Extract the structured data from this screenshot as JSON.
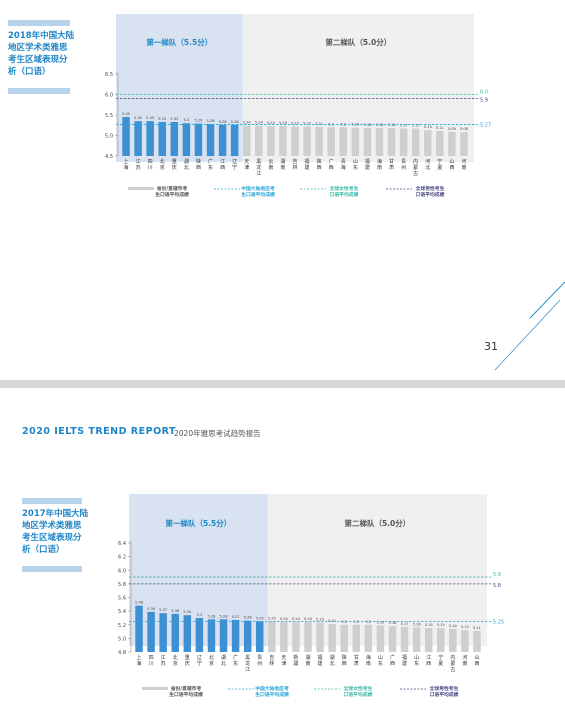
{
  "top": {
    "sidebar_title": "2018年中国大陆\n地区学术类雅思\n考生区域表现分\n析（口语）",
    "page_number": "31"
  },
  "bottom": {
    "report_title": "2020 IELTS TREND REPORT",
    "report_subtitle": "2020年雅思考试趋势报告",
    "sidebar_title": "2017年中国大陆\n地区学术类雅思\n考生区域表现分\n析（口语）"
  },
  "colors": {
    "blue_bar": "#3f90d3",
    "gray_bar": "#cfcfcf",
    "tier1_bg": "#d8e2f0",
    "tier2_bg": "#f0f0f0",
    "china_line": "#2aa7d9",
    "female_line": "#3bb9a6",
    "male_line": "#4a4a86",
    "accent": "#1e86c6"
  },
  "chart_data": [
    {
      "type": "bar",
      "year": "2018",
      "tiers": [
        {
          "label": "第一梯队（5.5分）"
        },
        {
          "label": "第二梯队（5.0分）"
        }
      ],
      "yticks": [
        "4.5",
        "5.0",
        "5.5",
        "6.0",
        "6.5"
      ],
      "ylim": [
        4.5,
        6.5
      ],
      "categories": [
        "上海",
        "江苏",
        "四川",
        "北京",
        "重庆",
        "湖北",
        "陕西",
        "广东",
        "江西",
        "辽宁",
        "天津",
        "黑龙江",
        "云南",
        "湖南",
        "吉林",
        "福建",
        "陕西",
        "广西",
        "青海",
        "山东",
        "福建",
        "海南",
        "甘肃",
        "贵州",
        "内蒙古",
        "河北",
        "宁夏",
        "山西",
        "河南"
      ],
      "tier1_count": 10,
      "values": [
        5.45,
        5.35,
        5.35,
        5.33,
        5.33,
        5.3,
        5.29,
        5.28,
        5.26,
        5.26,
        5.24,
        5.24,
        5.23,
        5.23,
        5.22,
        5.22,
        5.21,
        5.2,
        5.2,
        5.19,
        5.18,
        5.18,
        5.18,
        5.17,
        5.17,
        5.13,
        5.11,
        5.09,
        5.08
      ],
      "value_labels": [
        "5.45",
        "5.35",
        "5.35",
        "5.33",
        "5.33",
        "5.3",
        "5.29",
        "5.28",
        "5.26",
        "5.26",
        "5.24",
        "5.24",
        "5.23",
        "5.23",
        "5.22",
        "5.22",
        "5.21",
        "5.2",
        "5.2",
        "5.19",
        "5.18",
        "5.18",
        "5.18",
        "5.17",
        "5.17",
        "5.13",
        "5.11",
        "5.09",
        "5.08"
      ],
      "lines": [
        {
          "key": "female",
          "value": 6.0,
          "label": "6.0"
        },
        {
          "key": "male",
          "value": 5.9,
          "label": "5.9"
        },
        {
          "key": "china",
          "value": 5.27,
          "label": "5.27"
        }
      ],
      "legend": [
        {
          "key": "bar",
          "text": "省份/直辖市考\n生口语平均成绩"
        },
        {
          "key": "china",
          "text": "中国大陆地区考\n生口语平均成绩"
        },
        {
          "key": "female",
          "text": "全球女性考生\n口语平均成绩"
        },
        {
          "key": "male",
          "text": "全球男性考生\n口语平均成绩"
        }
      ]
    },
    {
      "type": "bar",
      "year": "2017",
      "tiers": [
        {
          "label": "第一梯队（5.5分）"
        },
        {
          "label": "第二梯队（5.0分）"
        }
      ],
      "yticks": [
        "4.8",
        "5.0",
        "5.2",
        "5.4",
        "5.6",
        "5.8",
        "6.0",
        "6.2",
        "6.4"
      ],
      "ylim": [
        4.8,
        6.4
      ],
      "categories": [
        "上海",
        "四川",
        "江苏",
        "北京",
        "重庆",
        "辽宁",
        "北京",
        "湖北",
        "广东",
        "黑龙江",
        "贵州",
        "吉林",
        "天津",
        "新疆",
        "湖南",
        "福建",
        "湖北",
        "陕西",
        "甘肃",
        "海南",
        "山东",
        "广西",
        "福建",
        "山东",
        "江西",
        "宁夏",
        "内蒙古",
        "河南",
        "山西"
      ],
      "tier1_count": 11,
      "values": [
        5.48,
        5.39,
        5.37,
        5.36,
        5.34,
        5.3,
        5.28,
        5.28,
        5.27,
        5.26,
        5.25,
        5.25,
        5.24,
        5.24,
        5.24,
        5.23,
        5.21,
        5.2,
        5.2,
        5.2,
        5.19,
        5.18,
        5.17,
        5.16,
        5.15,
        5.15,
        5.14,
        5.12,
        5.11
      ],
      "value_labels": [
        "5.48",
        "5.39",
        "5.37",
        "5.36",
        "5.34",
        "5.3",
        "5.28",
        "5.28",
        "5.27",
        "5.26",
        "5.25",
        "5.25",
        "5.24",
        "5.24",
        "5.24",
        "5.23",
        "5.21",
        "5.2",
        "5.2",
        "5.2",
        "5.19",
        "5.18",
        "5.17",
        "5.16",
        "5.15",
        "5.15",
        "5.14",
        "5.12",
        "5.11"
      ],
      "lines": [
        {
          "key": "female",
          "value": 5.9,
          "label": "5.9"
        },
        {
          "key": "male",
          "value": 5.8,
          "label": "5.8"
        },
        {
          "key": "china",
          "value": 5.25,
          "label": "5.25"
        }
      ],
      "legend": [
        {
          "key": "bar",
          "text": "省份/直辖市考\n生口语平均成绩"
        },
        {
          "key": "china",
          "text": "中国大陆地区考\n生口语平均成绩"
        },
        {
          "key": "female",
          "text": "全球女性考生\n口语平均成绩"
        },
        {
          "key": "male",
          "text": "全球男性考生\n口语平均成绩"
        }
      ]
    }
  ]
}
